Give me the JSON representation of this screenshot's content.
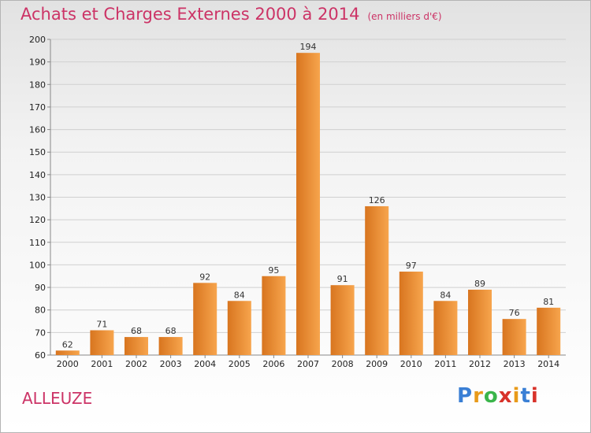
{
  "title": "Achats et Charges Externes 2000 à 2014",
  "unit": "(en milliers d'€)",
  "place": "ALLEUZE",
  "logo": {
    "letters": [
      "P",
      "r",
      "o",
      "x",
      "i",
      "t",
      "i"
    ],
    "colors": [
      "#3a7fd5",
      "#e89a1a",
      "#3ab54a",
      "#d8322a",
      "#e89a1a",
      "#3a7fd5",
      "#d8322a"
    ]
  },
  "colors": {
    "bar_light": "#f7a54d",
    "bar_dark": "#d8751f",
    "text_accent": "#cc3366"
  },
  "chart_data": {
    "type": "bar",
    "categories": [
      "2000",
      "2001",
      "2002",
      "2003",
      "2004",
      "2005",
      "2006",
      "2007",
      "2008",
      "2009",
      "2010",
      "2011",
      "2012",
      "2013",
      "2014"
    ],
    "values": [
      62,
      71,
      68,
      68,
      92,
      84,
      95,
      194,
      91,
      126,
      97,
      84,
      89,
      76,
      81
    ],
    "ylim": [
      60,
      200
    ],
    "yticks": [
      60,
      70,
      80,
      90,
      100,
      110,
      120,
      130,
      140,
      150,
      160,
      170,
      180,
      190,
      200
    ],
    "grid": true,
    "xlabel": "",
    "ylabel": ""
  }
}
